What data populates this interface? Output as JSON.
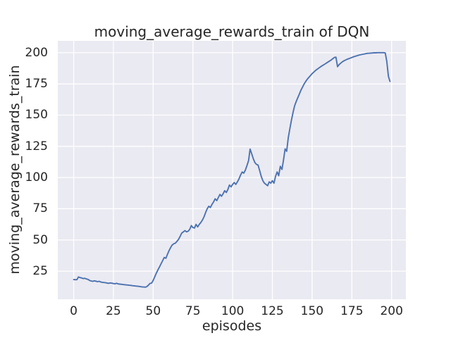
{
  "figure": {
    "title": "moving_average_rewards_train of DQN",
    "xlabel": "episodes",
    "ylabel": "moving_average_rewards_train"
  },
  "colors": {
    "figure_bg": "#ffffff",
    "axes_bg": "#eaeaf2",
    "grid": "#ffffff",
    "line": "#4c72b0",
    "text": "#262626"
  },
  "chart_data": {
    "type": "line",
    "title": "moving_average_rewards_train of DQN",
    "xlabel": "episodes",
    "ylabel": "moving_average_rewards_train",
    "x_ticks": [
      0,
      25,
      50,
      75,
      100,
      125,
      150,
      175,
      200
    ],
    "y_ticks": [
      25,
      50,
      75,
      100,
      125,
      150,
      175,
      200
    ],
    "xlim": [
      -10,
      209
    ],
    "ylim": [
      2.5,
      209.5
    ],
    "grid": true,
    "legend": null,
    "line_color": "#4c72b0",
    "series": [
      {
        "name": "moving_average_rewards_train",
        "x_start": 0,
        "x_step": 1,
        "y": [
          18.3,
          18.2,
          18.2,
          20.4,
          19.9,
          19.6,
          19.1,
          19.3,
          18.8,
          18.4,
          17.6,
          17.1,
          16.9,
          17.3,
          17.0,
          16.6,
          16.9,
          16.4,
          16.1,
          15.9,
          15.8,
          15.5,
          15.3,
          15.6,
          15.4,
          15.1,
          14.9,
          15.3,
          14.8,
          14.6,
          14.5,
          14.3,
          14.2,
          14.0,
          13.9,
          13.7,
          13.6,
          13.4,
          13.3,
          13.1,
          13.0,
          12.8,
          12.6,
          12.4,
          12.3,
          12.2,
          12.6,
          13.8,
          15.2,
          15.4,
          17.5,
          20.5,
          23.5,
          26.0,
          28.5,
          31.0,
          33.5,
          36.0,
          35.3,
          38.5,
          41.5,
          44.0,
          46.0,
          47.0,
          47.5,
          49.0,
          50.5,
          53.0,
          55.5,
          56.5,
          57.5,
          56.5,
          57.0,
          58.5,
          61.5,
          60.0,
          59.5,
          62.5,
          60.5,
          62.5,
          64.0,
          66.0,
          68.5,
          72.0,
          75.0,
          77.0,
          76.0,
          78.5,
          80.5,
          83.0,
          81.5,
          84.0,
          86.5,
          85.0,
          87.0,
          89.5,
          88.0,
          90.5,
          94.0,
          92.5,
          94.5,
          96.0,
          94.5,
          96.5,
          99.0,
          102.0,
          104.5,
          103.5,
          106.0,
          109.5,
          113.5,
          122.8,
          119.0,
          115.0,
          112.0,
          110.5,
          110.0,
          105.5,
          101.0,
          97.5,
          95.5,
          94.5,
          93.5,
          96.5,
          95.5,
          97.5,
          95.5,
          101.0,
          104.5,
          101.5,
          109.0,
          106.5,
          114.0,
          123.0,
          121.0,
          132.0,
          139.0,
          146.0,
          152.0,
          157.5,
          161.0,
          164.0,
          167.0,
          170.0,
          172.5,
          175.0,
          177.0,
          178.8,
          180.3,
          181.8,
          183.2,
          184.4,
          185.6,
          186.6,
          187.5,
          188.4,
          189.3,
          190.1,
          190.9,
          191.7,
          192.5,
          193.3,
          194.2,
          195.2,
          196.2,
          196.4,
          188.8,
          190.5,
          191.6,
          192.7,
          193.5,
          194.1,
          194.7,
          195.2,
          195.7,
          196.2,
          196.7,
          197.1,
          197.5,
          197.9,
          198.2,
          198.5,
          198.8,
          199.0,
          199.3,
          199.5,
          199.6,
          199.7,
          199.8,
          199.9,
          199.9,
          200.0,
          200.0,
          200.0,
          200.0,
          200.0,
          199.8,
          193.0,
          181.0,
          177.0
        ]
      }
    ]
  }
}
